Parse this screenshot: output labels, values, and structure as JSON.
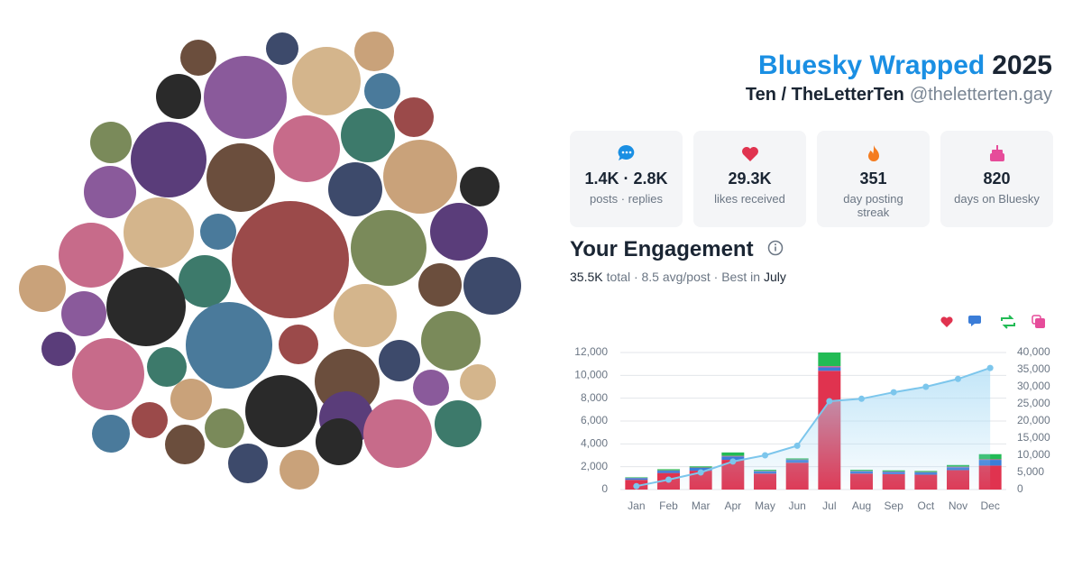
{
  "header": {
    "title": "Bluesky Wrapped",
    "year": "2025",
    "name": "Ten / TheLetterTen",
    "handle": "@theletterten.gay"
  },
  "stats": [
    {
      "value": "1.4K · 2.8K",
      "label": "posts · replies"
    },
    {
      "value": "29.3K",
      "label": "likes received"
    },
    {
      "value": "351",
      "label": "day posting streak"
    },
    {
      "value": "820",
      "label": "days on Bluesky"
    }
  ],
  "engagement": {
    "title": "Your Engagement",
    "total": "35.5K",
    "middle": "total · 8.5 avg/post · Best in",
    "best": "July"
  },
  "chart_data": {
    "type": "bar",
    "categories": [
      "Jan",
      "Feb",
      "Mar",
      "Apr",
      "May",
      "Jun",
      "Jul",
      "Aug",
      "Sep",
      "Oct",
      "Nov",
      "Dec"
    ],
    "series": [
      {
        "color": "#e0334f",
        "values": [
          850,
          1450,
          1650,
          2600,
          1400,
          2350,
          10400,
          1400,
          1350,
          1300,
          1700,
          2100
        ]
      },
      {
        "color": "#3b7dd8",
        "values": [
          150,
          200,
          250,
          300,
          200,
          250,
          300,
          200,
          200,
          200,
          250,
          500
        ]
      },
      {
        "color": "#e64c9a",
        "values": [
          20,
          30,
          30,
          50,
          30,
          30,
          100,
          30,
          30,
          30,
          50,
          50
        ]
      },
      {
        "color": "#22bb55",
        "values": [
          50,
          100,
          100,
          300,
          100,
          100,
          1200,
          100,
          100,
          100,
          150,
          450
        ]
      },
      {
        "type": "line",
        "axis": "y2",
        "color": "#7cc6ec",
        "values": [
          1000,
          2900,
          5000,
          8200,
          10000,
          12800,
          25800,
          26500,
          28400,
          30000,
          32300,
          35500
        ]
      }
    ],
    "ylim": [
      0,
      12000
    ],
    "yticks": [
      0,
      {
        "value": 2000,
        "label": "2,000"
      },
      {
        "value": 4000,
        "label": "4,000"
      },
      {
        "value": 6000,
        "label": "6,000"
      },
      {
        "value": 8000,
        "label": "8,000"
      },
      {
        "value": 10000,
        "label": "10,000"
      },
      {
        "value": 12000,
        "label": "12,000"
      }
    ],
    "y2lim": [
      0,
      40000
    ],
    "y2ticks": [
      0,
      {
        "value": 5000,
        "label": "5,000"
      },
      {
        "value": 10000,
        "label": "10,000"
      },
      {
        "value": 15000,
        "label": "15,000"
      },
      {
        "value": 20000,
        "label": "20,000"
      },
      {
        "value": 25000,
        "label": "25,000"
      },
      {
        "value": 30000,
        "label": "30,000"
      },
      {
        "value": 35000,
        "label": "35,000"
      },
      {
        "value": 40000,
        "label": "40,000"
      }
    ],
    "grid": true
  }
}
